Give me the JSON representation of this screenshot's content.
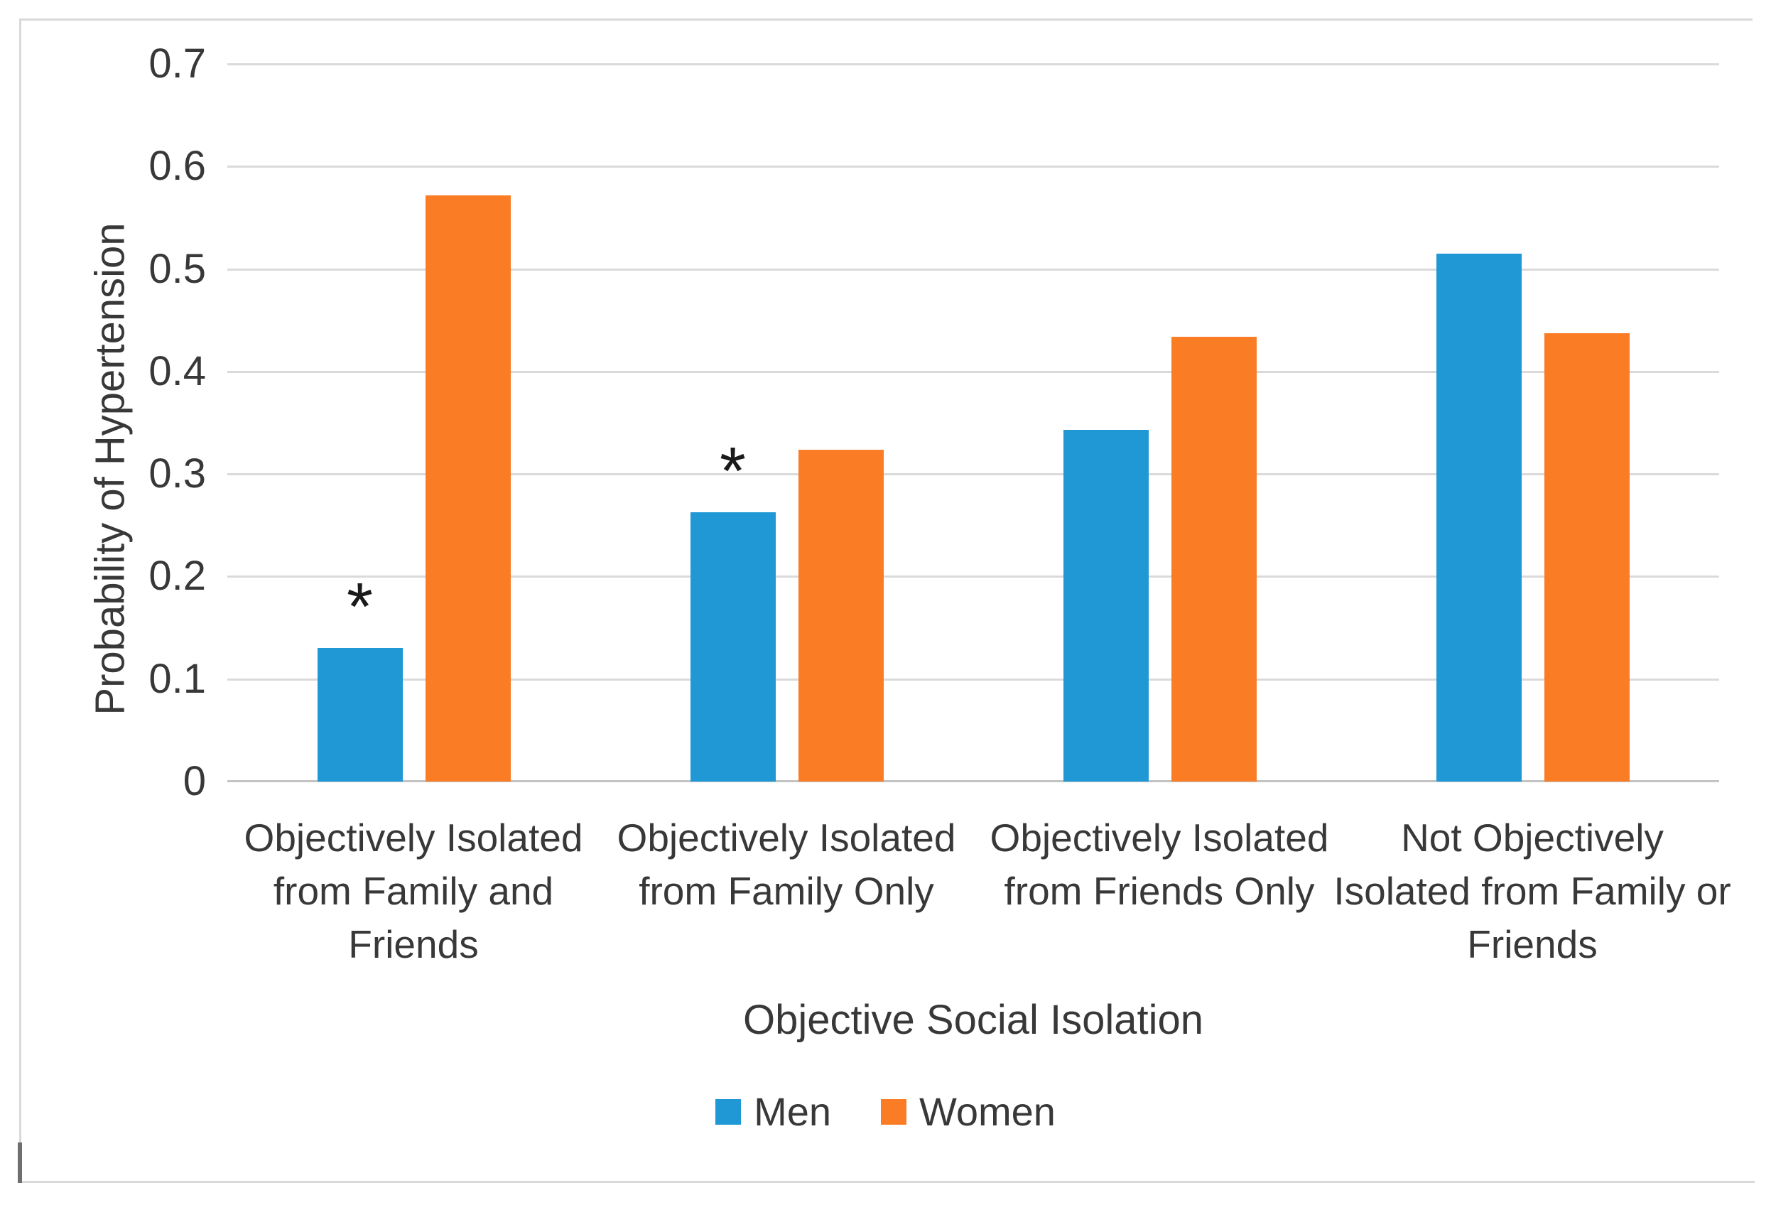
{
  "chart_data": {
    "type": "bar",
    "title": "",
    "xlabel": "Objective Social Isolation",
    "ylabel": "Probability of Hypertension",
    "ylim": [
      0,
      0.7
    ],
    "yticks": [
      "0.7",
      "0.6",
      "0.5",
      "0.4",
      "0.3",
      "0.2",
      "0.1",
      "0"
    ],
    "grid": true,
    "legend_position": "bottom-center",
    "categories": [
      "Objectively Isolated from Family and Friends",
      "Objectively Isolated from Family Only",
      "Objectively Isolated from Friends Only",
      "Not Objectively Isolated from Family or Friends"
    ],
    "series": [
      {
        "name": "Men",
        "color": "#2098d6",
        "values": [
          0.13,
          0.263,
          0.343,
          0.515
        ],
        "markers": [
          "*",
          "*",
          "",
          ""
        ]
      },
      {
        "name": "Women",
        "color": "#fa7d26",
        "values": [
          0.572,
          0.324,
          0.434,
          0.437
        ],
        "markers": [
          "",
          "",
          "",
          ""
        ]
      }
    ],
    "significance_marker": "*",
    "gridline_color": "#dadada",
    "axis_line_color": "#c3c3c3",
    "text_color": "#383838"
  }
}
